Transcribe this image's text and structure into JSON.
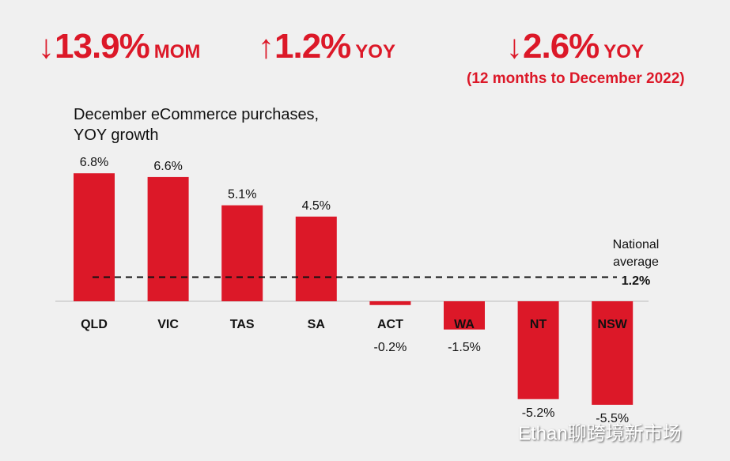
{
  "kpis": [
    {
      "arrow": "↓",
      "value": "13.9%",
      "unit": "MOM"
    },
    {
      "arrow": "↑",
      "value": "1.2%",
      "unit": "YOY"
    },
    {
      "arrow": "↓",
      "value": "2.6%",
      "unit": "YOY",
      "note": "(12 months to December 2022)"
    }
  ],
  "colors": {
    "accent": "#dc1828",
    "text": "#111111",
    "background": "#f0f0f0"
  },
  "chart_data": {
    "type": "bar",
    "title": "December eCommerce purchases, YOY growth",
    "title_lines": [
      "December eCommerce purchases,",
      "YOY growth"
    ],
    "categories": [
      "QLD",
      "VIC",
      "TAS",
      "SA",
      "ACT",
      "WA",
      "NT",
      "NSW"
    ],
    "values": [
      6.8,
      6.6,
      5.1,
      4.5,
      -0.2,
      -1.5,
      -5.2,
      -5.5
    ],
    "labels": [
      "6.8%",
      "6.6%",
      "5.1%",
      "4.5%",
      "-0.2%",
      "-1.5%",
      "-5.2%",
      "-5.5%"
    ],
    "reference_line": {
      "value": 1.2,
      "label_lines": [
        "National",
        "average"
      ],
      "value_label": "1.2%"
    },
    "unit": "%"
  },
  "watermark": "Ethan聊跨境新市场"
}
